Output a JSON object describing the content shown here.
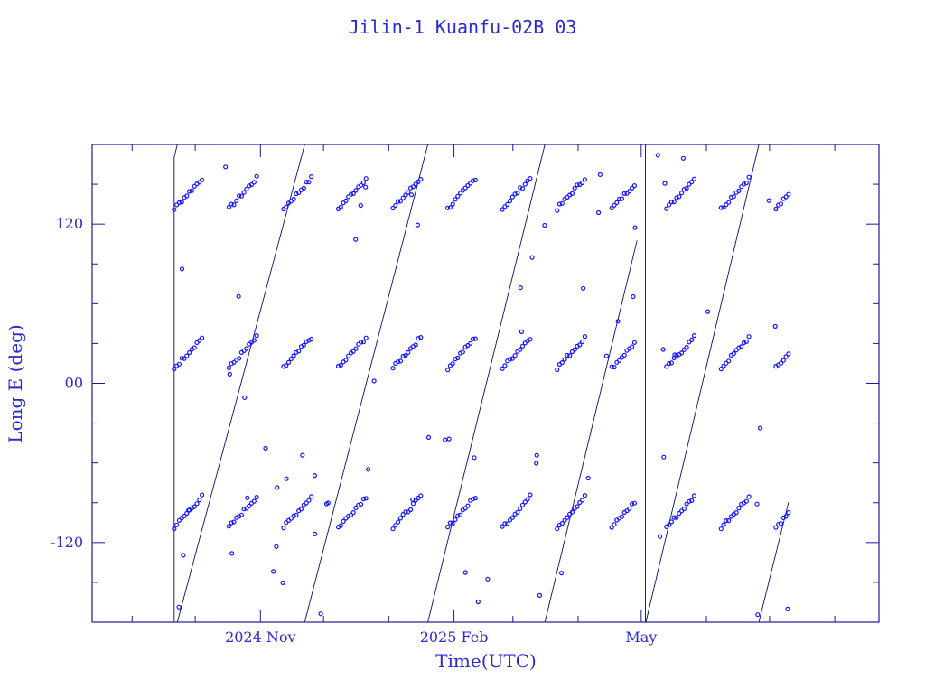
{
  "colors": {
    "axis": "#1a1a9a",
    "trace": "#0b0b7a",
    "marker": "#1414ff",
    "text": "#2a2ad0"
  },
  "chart_data": {
    "type": "line",
    "title": "Jilin-1 Kuanfu-02B 03",
    "xlabel": "Time(UTC)",
    "ylabel": "Long E (deg)",
    "x_axis_kind": "date",
    "xlim": [
      "2024-08-13",
      "2025-08-22"
    ],
    "ylim": [
      -180,
      180
    ],
    "x_ticks": [
      {
        "value": "2024-11-01",
        "label": "2024 Nov"
      },
      {
        "value": "2025-02-01",
        "label": "2025 Feb"
      },
      {
        "value": "2025-05-01",
        "label": "May"
      }
    ],
    "x_minor_ticks": [
      "2024-09-01",
      "2024-10-01",
      "2024-12-01",
      "2025-01-01",
      "2025-03-01",
      "2025-04-01",
      "2025-06-01",
      "2025-07-01",
      "2025-08-01"
    ],
    "y_ticks": [
      {
        "value": 120,
        "label": "120"
      },
      {
        "value": 0,
        "label": "00"
      },
      {
        "value": -120,
        "label": "-120"
      }
    ],
    "y_minor_step": 30,
    "grid": false,
    "series": [
      {
        "marker": "small-circle",
        "start_date": "2024-09-21",
        "end_date": "2025-07-10",
        "gaps": [
          [
            "2025-04-29",
            "2025-05-03"
          ]
        ],
        "note_values_wrap": "longitude drifts eastward continuously and wraps from 180 to -180",
        "marker_tracks_start_longitudes": [
          150,
          30,
          -90
        ],
        "typical_longitude_drift_deg_per_day": 6.4
      }
    ]
  }
}
